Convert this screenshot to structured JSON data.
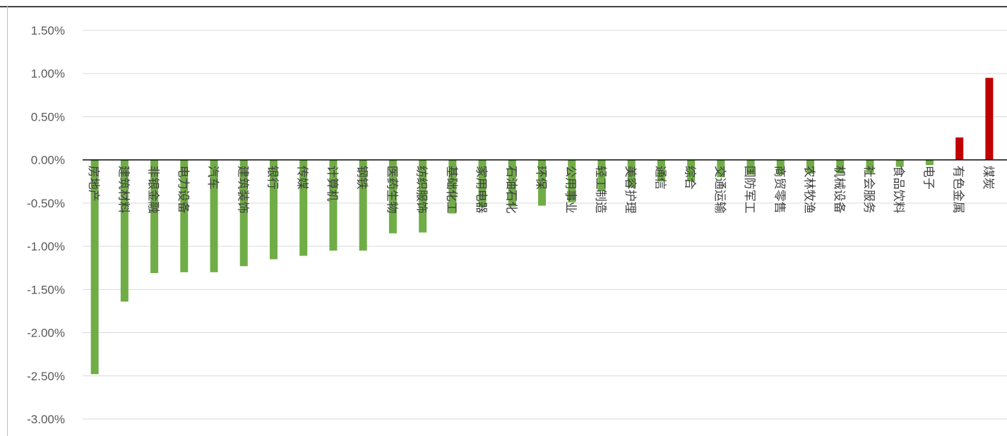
{
  "chart_data": {
    "type": "bar",
    "title": "",
    "xlabel": "",
    "ylabel": "",
    "ylim": [
      -3.0,
      1.5
    ],
    "y_ticks": [
      1.5,
      1.0,
      0.5,
      0.0,
      -0.5,
      -1.0,
      -1.5,
      -2.0,
      -2.5,
      -3.0
    ],
    "y_tick_labels": [
      "1.50%",
      "1.00%",
      "0.50%",
      "0.00%",
      "-0.50%",
      "-1.00%",
      "-1.50%",
      "-2.00%",
      "-2.50%",
      "-3.00%"
    ],
    "grid": true,
    "legend": "none",
    "categories": [
      "房地产",
      "建筑材料",
      "非银金融",
      "电力设备",
      "汽车",
      "建筑装饰",
      "银行",
      "传媒",
      "计算机",
      "钢铁",
      "医药生物",
      "纺织服饰",
      "基础化工",
      "家用电器",
      "石油石化",
      "环保",
      "公用事业",
      "轻工制造",
      "美容护理",
      "通信",
      "综合",
      "交通运输",
      "国防军工",
      "商贸零售",
      "农林牧渔",
      "机械设备",
      "社会服务",
      "食品饮料",
      "电子",
      "有色金属",
      "煤炭"
    ],
    "values": [
      -2.48,
      -1.64,
      -1.31,
      -1.3,
      -1.3,
      -1.23,
      -1.15,
      -1.11,
      -1.05,
      -1.05,
      -0.85,
      -0.84,
      -0.62,
      -0.55,
      -0.54,
      -0.53,
      -0.49,
      -0.36,
      -0.32,
      -0.25,
      -0.25,
      -0.2,
      -0.17,
      -0.17,
      -0.16,
      -0.16,
      -0.15,
      -0.08,
      -0.06,
      0.26,
      0.95
    ],
    "colors": {
      "negative": "#70AD47",
      "positive": "#C00000",
      "grid": "#D9D9D9",
      "axis": "#000000"
    }
  }
}
